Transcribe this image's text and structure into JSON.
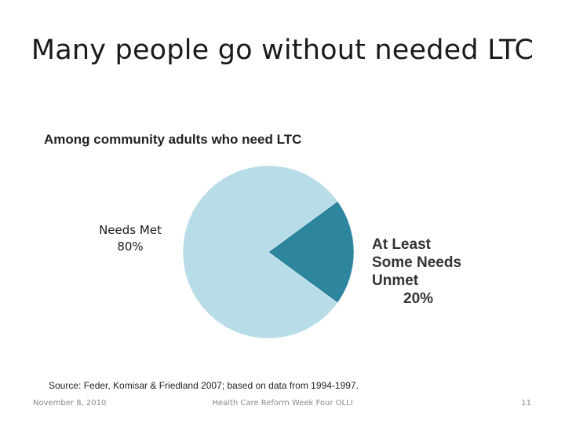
{
  "slide": {
    "title": "Many people go without needed LTC",
    "footer": {
      "date": "November 8, 2010",
      "center": "Health Care Reform Week Four OLLI",
      "page": "11"
    },
    "source": "Source: Feder, Komisar & Friedland 2007; based on data from 1994-1997."
  },
  "chart_data": {
    "type": "pie",
    "title": "Among community adults who need LTC",
    "slices": [
      {
        "label": "Needs Met",
        "value": 80,
        "value_label": "80%",
        "color": "#b8dde8"
      },
      {
        "label_lines": [
          "At Least",
          "Some Needs",
          "Unmet"
        ],
        "value": 20,
        "value_label": "20%",
        "color": "#2e859e"
      }
    ],
    "legend": "none"
  }
}
